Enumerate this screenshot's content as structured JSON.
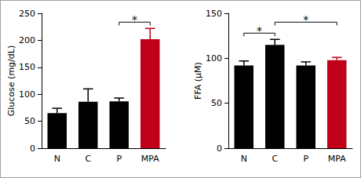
{
  "chart_data": [
    {
      "type": "bar",
      "categories": [
        "N",
        "C",
        "P",
        "MPA"
      ],
      "values": [
        65,
        86,
        87,
        202
      ],
      "errors": [
        9,
        24,
        6,
        20
      ],
      "colors": [
        "#000000",
        "#000000",
        "#000000",
        "#c00018"
      ],
      "y_label": "Glucose (mg/dL)",
      "ylim": [
        0,
        250
      ],
      "yticks": [
        0,
        50,
        100,
        150,
        200,
        250
      ],
      "grid": false,
      "significance": [
        {
          "from": "P",
          "to": "MPA",
          "label": "*"
        }
      ]
    },
    {
      "type": "bar",
      "categories": [
        "N",
        "C",
        "P",
        "MPA"
      ],
      "values": [
        92,
        115,
        92,
        98
      ],
      "errors": [
        5,
        6,
        4,
        3
      ],
      "colors": [
        "#000000",
        "#000000",
        "#000000",
        "#c00018"
      ],
      "y_label": "FFA (μM)",
      "ylim": [
        0,
        150
      ],
      "yticks": [
        0,
        50,
        100,
        150
      ],
      "grid": false,
      "significance": [
        {
          "from": "N",
          "to": "C",
          "label": "*"
        },
        {
          "from": "C",
          "to": "MPA",
          "label": "*"
        }
      ]
    }
  ]
}
